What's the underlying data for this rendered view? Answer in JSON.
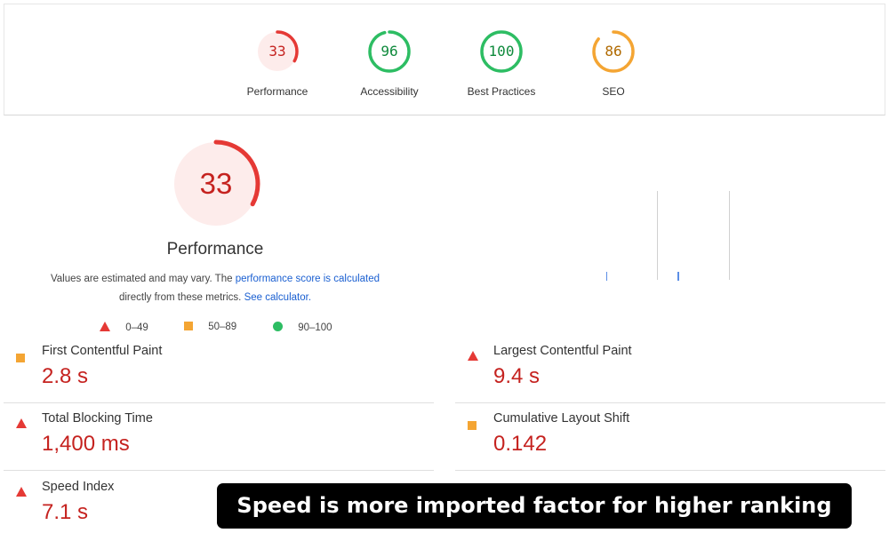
{
  "summary": {
    "categories": [
      {
        "label": "Performance",
        "score": "33",
        "score_value": 33,
        "rating": "fail",
        "color": "#e53935",
        "fill": "#fdeceb",
        "text_color": "#c5221f"
      },
      {
        "label": "Accessibility",
        "score": "96",
        "score_value": 96,
        "rating": "pass",
        "color": "#2dbd63",
        "fill": "#ffffff",
        "text_color": "#0f8a3c"
      },
      {
        "label": "Best Practices",
        "score": "100",
        "score_value": 100,
        "rating": "pass",
        "color": "#2dbd63",
        "fill": "#ffffff",
        "text_color": "#0f8a3c"
      },
      {
        "label": "SEO",
        "score": "86",
        "score_value": 86,
        "rating": "average",
        "color": "#f4a533",
        "fill": "#ffffff",
        "text_color": "#b06a00"
      }
    ]
  },
  "performance": {
    "score": "33",
    "score_value": 33,
    "title": "Performance",
    "desc_part1": "Values are estimated and may vary. The ",
    "desc_link1": "performance score is calculated",
    "desc_part2": "directly from these metrics. ",
    "desc_link2": "See calculator.",
    "legend": [
      {
        "icon": "triangle-fail-icon",
        "range": "0–49"
      },
      {
        "icon": "square-average-icon",
        "range": "50–89"
      },
      {
        "icon": "circle-pass-icon",
        "range": "90–100"
      }
    ]
  },
  "metrics": [
    {
      "label": "First Contentful Paint",
      "value": "2.8 s",
      "rating": "average"
    },
    {
      "label": "Largest Contentful Paint",
      "value": "9.4 s",
      "rating": "fail"
    },
    {
      "label": "Total Blocking Time",
      "value": "1,400 ms",
      "rating": "fail"
    },
    {
      "label": "Cumulative Layout Shift",
      "value": "0.142",
      "rating": "average"
    },
    {
      "label": "Speed Index",
      "value": "7.1 s",
      "rating": "fail"
    }
  ],
  "caption": "Speed is more imported factor for higher ranking",
  "colors": {
    "fail": "#e53935",
    "average": "#f4a533",
    "pass": "#2dbd63",
    "metric_value": "#c5221f",
    "link": "#1a5fd1",
    "banner_bg": "#000000"
  }
}
